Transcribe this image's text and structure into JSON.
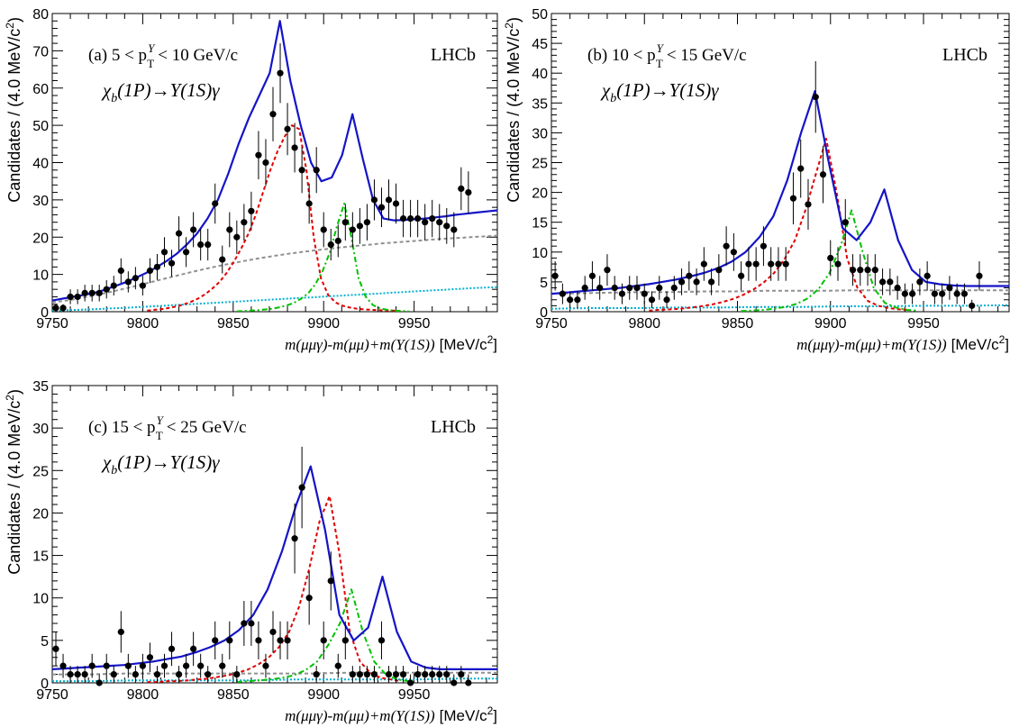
{
  "chart_data": [
    {
      "type": "scatter",
      "panel_label": "(a) 5 < p_T^Υ < 10 GeV/c",
      "label_main": "(a) 5 < p",
      "label_sup": "Y",
      "label_sub": "T",
      "label_tail": "< 10 GeV/c",
      "experiment": "LHCb",
      "decay": "χb(1P)→Υ(1S)γ",
      "decay_parts": {
        "chi": "χ",
        "sub": "b",
        "rest": "(1P)→Υ(1S)γ"
      },
      "xlabel": "m(μμγ)-m(μμ)+m(Υ(1S)) [MeV/c²]",
      "xlabel_math": "m(μμγ)-m(μμ)+m(Υ(1S))",
      "xlabel_unit": "[MeV/c",
      "xlabel_unit_sup": "2",
      "xlabel_unit_end": "]",
      "ylabel": "Candidates / (4.0 MeV/c²)",
      "ylabel_main": "Candidates / (4.0 MeV/c",
      "ylabel_sup": "2",
      "ylabel_end": ")",
      "xlim": [
        9750,
        9996
      ],
      "ylim": [
        0,
        80
      ],
      "xticks": [
        "9750",
        "9800",
        "9850",
        "9900",
        "9950"
      ],
      "yticks": [
        "0",
        "10",
        "20",
        "30",
        "40",
        "50",
        "60",
        "70",
        "80"
      ],
      "bin_width": 4.0,
      "peaks": [
        9892.5,
        9912.0
      ],
      "counts": [
        1,
        1,
        4,
        4,
        5,
        5,
        5,
        6,
        7,
        11,
        8,
        9,
        7,
        11,
        12,
        16,
        13,
        21,
        16,
        22,
        18,
        18,
        29,
        14,
        22,
        20,
        24,
        27,
        42,
        40,
        53,
        64,
        49,
        44,
        38,
        29,
        38,
        22,
        18,
        19,
        24,
        22,
        23,
        24,
        30,
        28,
        30,
        29,
        25,
        25,
        25,
        24,
        25,
        24,
        23,
        22,
        33,
        32
      ],
      "fit": {
        "total": {
          "color": "#1414c8",
          "values": [
            3,
            3.5,
            4,
            4.5,
            5,
            5.8,
            6.8,
            7.8,
            9,
            10.3,
            11.8,
            13.5,
            15.5,
            18,
            21,
            25,
            30,
            37,
            45,
            52,
            58,
            64,
            78,
            62,
            50,
            40,
            35,
            36,
            42,
            53,
            41,
            30,
            25,
            24.5,
            24.6,
            24.8,
            25,
            25.3,
            25.6,
            26,
            26.3,
            26.6,
            26.9,
            27.2
          ]
        },
        "peak_1p1": {
          "color": "#e00000",
          "values": [
            0.3,
            0.5,
            0.7,
            1,
            1.4,
            1.9,
            2.6,
            3.5,
            4.7,
            6.2,
            8,
            10.5,
            13.5,
            17,
            21,
            26,
            32,
            38,
            43,
            47,
            50,
            49,
            38,
            20,
            9,
            4.5,
            2.5,
            1.6,
            1.1,
            0.8,
            0.6,
            0.5,
            0.4,
            0.3,
            0.3,
            0.2
          ]
        },
        "peak_1p2": {
          "color": "#00c000",
          "values": [
            0.1,
            0.2,
            0.3,
            0.4,
            0.6,
            0.8,
            1.2,
            1.7,
            2.4,
            3.5,
            5,
            7.5,
            11,
            16,
            23,
            29,
            20,
            9,
            4,
            1.8,
            0.9,
            0.5,
            0.3,
            0.2,
            0.1
          ]
        },
        "background": {
          "color": "#909090",
          "values": [
            2.5,
            3.2,
            4.2,
            5.3,
            6.5,
            7.8,
            9.1,
            10.4,
            11.6,
            12.7,
            13.7,
            14.6,
            15.4,
            16.1,
            16.7,
            17.3,
            17.8,
            18.3,
            18.7,
            19.1,
            19.5,
            19.8,
            20.1,
            20.4
          ]
        },
        "other": {
          "color": "#00b0d0",
          "values": [
            0.3,
            0.5,
            0.8,
            1.1,
            1.5,
            1.9,
            2.3,
            2.7,
            3.1,
            3.5,
            3.9,
            4.3,
            4.7,
            5.1,
            5.5,
            5.9,
            6.3,
            6.6
          ]
        }
      }
    },
    {
      "type": "scatter",
      "panel_label": "(b) 10 < p_T^Υ < 15 GeV/c",
      "label_main": "(b) 10 < p",
      "label_sup": "Y",
      "label_sub": "T",
      "label_tail": "< 15 GeV/c",
      "experiment": "LHCb",
      "decay": "χb(1P)→Υ(1S)γ",
      "decay_parts": {
        "chi": "χ",
        "sub": "b",
        "rest": "(1P)→Υ(1S)γ"
      },
      "xlabel": "m(μμγ)-m(μμ)+m(Υ(1S)) [MeV/c²]",
      "xlabel_math": "m(μμγ)-m(μμ)+m(Υ(1S))",
      "xlabel_unit": "[MeV/c",
      "xlabel_unit_sup": "2",
      "xlabel_unit_end": "]",
      "ylabel": "Candidates / (4.0 MeV/c²)",
      "ylabel_main": "Candidates / (4.0 MeV/c",
      "ylabel_sup": "2",
      "ylabel_end": ")",
      "xlim": [
        9750,
        9996
      ],
      "ylim": [
        0,
        50
      ],
      "xticks": [
        "9750",
        "9800",
        "9850",
        "9900",
        "9950"
      ],
      "yticks": [
        "0",
        "5",
        "10",
        "15",
        "20",
        "25",
        "30",
        "35",
        "40",
        "45",
        "50"
      ],
      "bin_width": 4.0,
      "peaks": [
        9892.5,
        9912.0
      ],
      "counts": [
        6,
        3,
        2,
        2,
        4,
        6,
        4,
        7,
        4,
        3,
        4,
        4,
        3,
        2,
        4,
        2,
        4,
        5,
        6,
        5,
        8,
        5,
        7,
        11,
        10,
        6,
        8,
        8,
        11,
        8,
        8,
        8,
        19,
        24,
        18,
        36,
        23,
        9,
        8,
        15,
        7,
        7,
        7,
        7,
        5,
        5,
        4,
        3,
        3,
        5,
        6,
        3,
        3,
        4,
        3,
        3,
        1,
        6
      ],
      "fit": {
        "total": {
          "color": "#1414c8",
          "values": [
            3,
            3.2,
            3.4,
            3.6,
            3.8,
            4,
            4.3,
            4.6,
            5,
            5.4,
            5.9,
            6.5,
            7.3,
            8.4,
            10,
            12.5,
            16,
            22,
            30,
            37,
            25,
            14,
            12,
            15,
            20.5,
            12,
            7,
            5,
            4.6,
            4.4,
            4.3,
            4.3,
            4.3,
            4.3
          ]
        },
        "peak_1p1": {
          "color": "#e00000",
          "values": [
            0.2,
            0.3,
            0.4,
            0.5,
            0.7,
            0.9,
            1.2,
            1.6,
            2.1,
            2.8,
            3.7,
            4.9,
            6.5,
            8.8,
            12,
            17,
            23,
            29,
            20,
            9,
            4,
            1.8,
            1,
            0.6,
            0.4,
            0.3
          ]
        },
        "peak_1p2": {
          "color": "#00c000",
          "values": [
            0.1,
            0.2,
            0.3,
            0.5,
            0.8,
            1.3,
            2.2,
            3.8,
            6.5,
            11,
            17,
            10,
            4,
            1.5,
            0.7,
            0.3,
            0.2
          ]
        },
        "background": {
          "color": "#909090",
          "values": [
            3,
            3.1,
            3.2,
            3.3,
            3.3,
            3.4,
            3.4,
            3.5,
            3.5,
            3.5,
            3.6,
            3.6,
            3.6,
            3.6,
            3.6,
            3.6
          ]
        },
        "other": {
          "color": "#00b0d0",
          "values": [
            0.5,
            0.6,
            0.6,
            0.7,
            0.7,
            0.8,
            0.8,
            0.9,
            0.9,
            1,
            1,
            1.1
          ]
        }
      }
    },
    {
      "type": "scatter",
      "panel_label": "(c) 15 < p_T^Υ < 25 GeV/c",
      "label_main": "(c) 15 < p",
      "label_sup": "Y",
      "label_sub": "T",
      "label_tail": "< 25 GeV/c",
      "experiment": "LHCb",
      "decay": "χb(1P)→Υ(1S)γ",
      "decay_parts": {
        "chi": "χ",
        "sub": "b",
        "rest": "(1P)→Υ(1S)γ"
      },
      "xlabel": "m(μμγ)-m(μμ)+m(Υ(1S)) [MeV/c²]",
      "xlabel_math": "m(μμγ)-m(μμ)+m(Υ(1S))",
      "xlabel_unit": "[MeV/c",
      "xlabel_unit_sup": "2",
      "xlabel_unit_end": "]",
      "ylabel": "Candidates / (4.0 MeV/c²)",
      "ylabel_main": "Candidates / (4.0 MeV/c",
      "ylabel_sup": "2",
      "ylabel_end": ")",
      "xlim": [
        9750,
        9996
      ],
      "ylim": [
        0,
        35
      ],
      "xticks": [
        "9750",
        "9800",
        "9850",
        "9900",
        "9950"
      ],
      "yticks": [
        "0",
        "5",
        "10",
        "15",
        "20",
        "25",
        "30",
        "35"
      ],
      "bin_width": 4.0,
      "peaks": [
        9892.5,
        9912.0
      ],
      "counts": [
        4,
        2,
        1,
        1,
        1,
        2,
        0,
        2,
        1,
        6,
        2,
        1,
        2,
        3,
        1,
        2,
        4,
        1,
        2,
        4,
        2,
        1,
        5,
        2,
        5,
        1,
        7,
        7,
        5,
        2,
        6,
        5,
        5,
        17,
        23,
        10,
        1,
        5,
        12,
        2,
        5,
        1,
        1,
        1,
        1,
        5,
        1,
        1,
        1,
        0,
        1,
        1,
        1,
        1,
        1,
        0,
        1,
        0
      ],
      "fit": {
        "total": {
          "color": "#1414c8",
          "values": [
            1.6,
            1.7,
            1.8,
            1.9,
            2,
            2.1,
            2.3,
            2.5,
            2.8,
            3.1,
            3.6,
            4.2,
            5,
            6.2,
            8,
            11,
            15.5,
            21,
            25.5,
            18,
            8,
            5,
            6.5,
            12.5,
            6,
            2.5,
            1.8,
            1.6,
            1.6,
            1.6,
            1.6,
            1.6
          ]
        },
        "peak_1p1": {
          "color": "#e00000",
          "values": [
            0.1,
            0.1,
            0.2,
            0.2,
            0.3,
            0.4,
            0.5,
            0.7,
            0.9,
            1.2,
            1.6,
            2.2,
            3,
            4.2,
            6,
            9,
            13.5,
            19,
            22,
            15,
            6,
            2.5,
            1.2,
            0.6,
            0.4,
            0.2
          ]
        },
        "peak_1p2": {
          "color": "#00c000",
          "values": [
            0.1,
            0.2,
            0.3,
            0.4,
            0.6,
            0.9,
            1.5,
            2.5,
            4.5,
            7,
            11,
            6,
            2.5,
            1,
            0.4,
            0.2
          ]
        },
        "background": {
          "color": "#909090",
          "values": [
            1,
            1,
            1.1,
            1.1,
            1.1,
            1.1,
            1.1,
            1.1,
            1.2,
            1.2,
            1.2,
            1.2,
            1.2
          ]
        },
        "other": {
          "color": "#00b0d0",
          "values": [
            0.2,
            0.2,
            0.3,
            0.3,
            0.3,
            0.3,
            0.4,
            0.4,
            0.4,
            0.4,
            0.5,
            0.5
          ]
        }
      }
    }
  ]
}
